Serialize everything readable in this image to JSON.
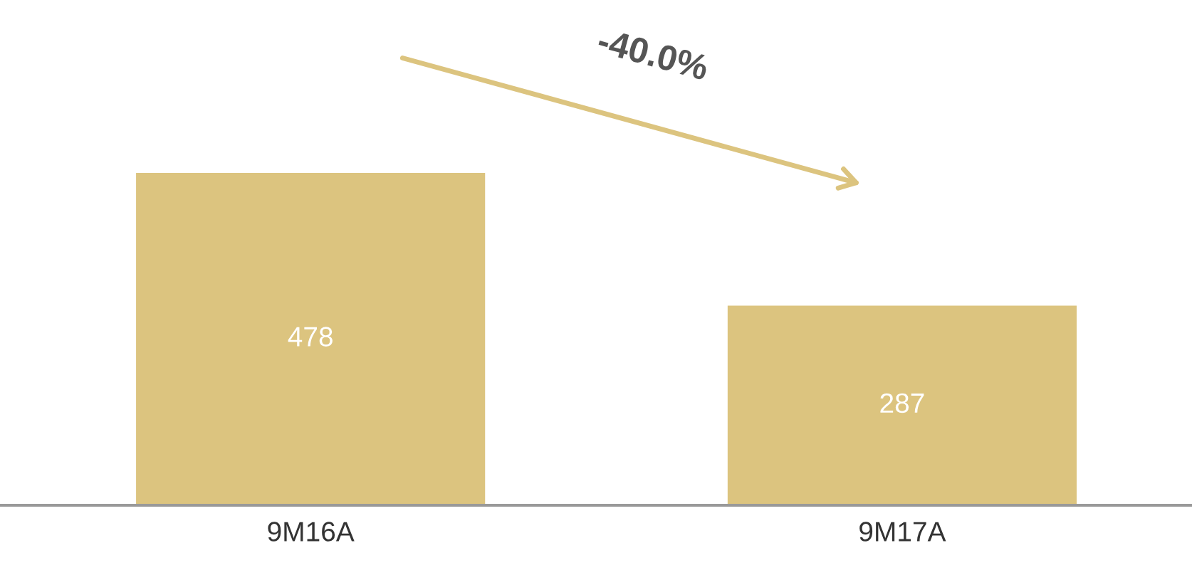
{
  "chart_data": {
    "type": "bar",
    "categories": [
      "9M16A",
      "9M17A"
    ],
    "values": [
      478,
      287
    ],
    "color": "#dcc47f",
    "data_labels": true,
    "grid": false,
    "legend": false,
    "annotations": [
      "-40.0%"
    ]
  }
}
